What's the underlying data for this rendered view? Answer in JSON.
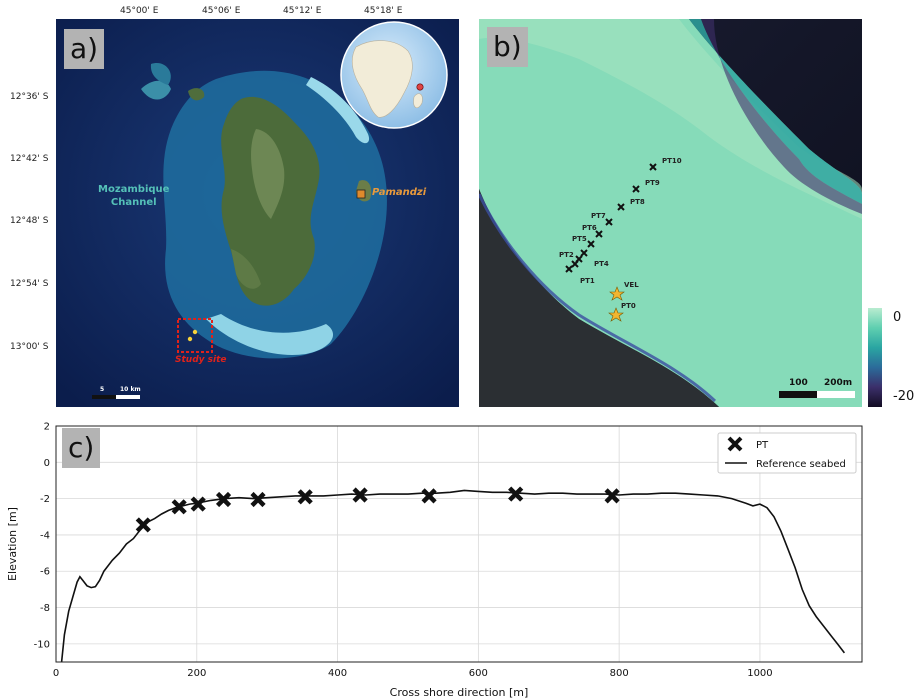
{
  "panel_a": {
    "label": "a)",
    "top_ticks": [
      "45°00' E",
      "45°06' E",
      "45°12' E",
      "45°18' E"
    ],
    "left_ticks": [
      "12°36' S",
      "12°42' S",
      "12°48' S",
      "12°54' S",
      "13°00' S"
    ],
    "channel_label": [
      "Mozambique",
      "Channel"
    ],
    "town_label": "Pamandzi",
    "study_label": "Study site",
    "scale_labels": [
      "5",
      "10 km"
    ]
  },
  "panel_b": {
    "label": "b)",
    "points": [
      {
        "name": "PT10"
      },
      {
        "name": "PT9"
      },
      {
        "name": "PT8"
      },
      {
        "name": "PT7"
      },
      {
        "name": "PT6"
      },
      {
        "name": "PT5"
      },
      {
        "name": "PT2"
      },
      {
        "name": "PT4"
      },
      {
        "name": "PT1"
      },
      {
        "name": "VEL"
      },
      {
        "name": "PT0"
      }
    ],
    "scale_labels": [
      "100",
      "200m"
    ],
    "colorbar_ticks": [
      "0",
      "-20"
    ]
  },
  "panel_c": {
    "label": "c)",
    "chart_data": {
      "type": "line",
      "xlabel": "Cross shore direction [m]",
      "ylabel": "Elevation [m]",
      "xlim": [
        0,
        1145
      ],
      "ylim": [
        -11,
        2
      ],
      "x_ticks": [
        0,
        200,
        400,
        600,
        800,
        1000
      ],
      "y_ticks": [
        2,
        0,
        -2,
        -4,
        -6,
        -8,
        -10
      ],
      "grid": true,
      "legend_position": "top-right",
      "legend": [
        "PT",
        "Reference seabed"
      ],
      "series": [
        {
          "name": "Reference seabed",
          "x": [
            8,
            12,
            18,
            24,
            30,
            34,
            38,
            44,
            50,
            56,
            62,
            68,
            74,
            80,
            90,
            100,
            110,
            120,
            130,
            140,
            150,
            160,
            170,
            180,
            190,
            200,
            220,
            240,
            260,
            280,
            300,
            320,
            340,
            360,
            380,
            400,
            420,
            440,
            460,
            480,
            500,
            520,
            540,
            560,
            580,
            600,
            620,
            640,
            660,
            680,
            700,
            720,
            740,
            760,
            780,
            800,
            820,
            840,
            860,
            880,
            900,
            920,
            940,
            960,
            980,
            990,
            1000,
            1010,
            1020,
            1030,
            1040,
            1050,
            1060,
            1070,
            1080,
            1090,
            1100,
            1110,
            1120
          ],
          "y": [
            -11,
            -9.5,
            -8.2,
            -7.4,
            -6.6,
            -6.3,
            -6.5,
            -6.8,
            -6.9,
            -6.85,
            -6.5,
            -6.0,
            -5.7,
            -5.4,
            -5.0,
            -4.5,
            -4.2,
            -3.7,
            -3.3,
            -3.1,
            -2.85,
            -2.65,
            -2.5,
            -2.4,
            -2.3,
            -2.25,
            -2.1,
            -2.0,
            -1.95,
            -2.0,
            -1.95,
            -1.9,
            -1.85,
            -1.85,
            -1.85,
            -1.8,
            -1.75,
            -1.8,
            -1.75,
            -1.75,
            -1.75,
            -1.7,
            -1.7,
            -1.65,
            -1.55,
            -1.6,
            -1.65,
            -1.65,
            -1.7,
            -1.75,
            -1.7,
            -1.7,
            -1.75,
            -1.75,
            -1.75,
            -1.8,
            -1.75,
            -1.75,
            -1.7,
            -1.7,
            -1.75,
            -1.8,
            -1.85,
            -2.0,
            -2.25,
            -2.4,
            -2.3,
            -2.5,
            -3.0,
            -3.8,
            -4.8,
            -5.8,
            -7.0,
            -7.9,
            -8.5,
            -9.0,
            -9.5,
            -10.0,
            -10.5
          ]
        },
        {
          "name": "PT",
          "x": [
            124,
            175,
            202,
            238,
            287,
            354,
            432,
            530,
            653,
            790
          ],
          "y": [
            -3.45,
            -2.45,
            -2.3,
            -2.05,
            -2.05,
            -1.9,
            -1.8,
            -1.85,
            -1.75,
            -1.85
          ]
        }
      ]
    }
  }
}
